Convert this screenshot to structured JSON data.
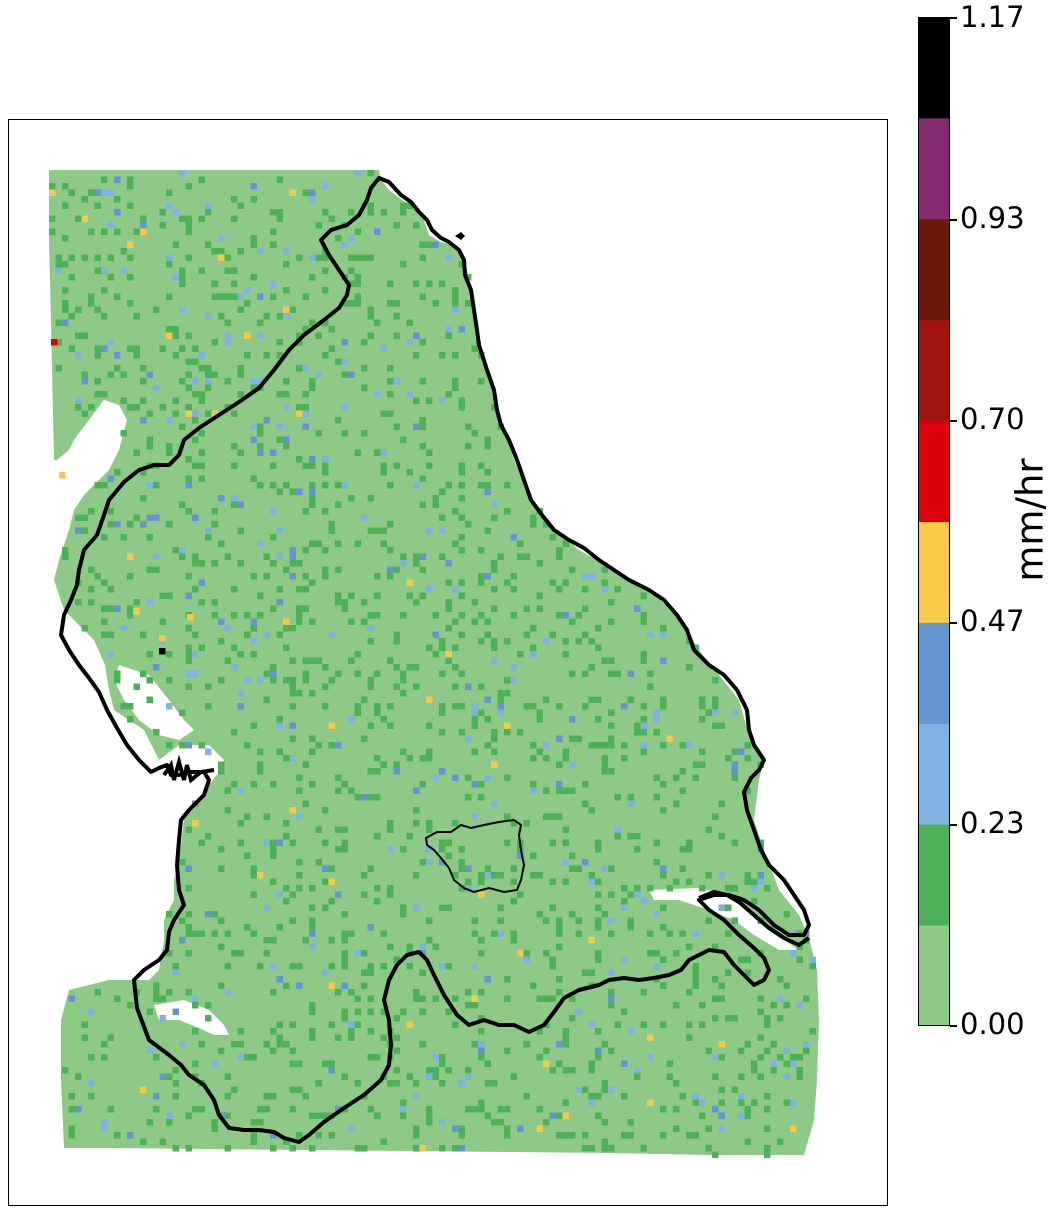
{
  "colorbar": {
    "label": "mm/hr",
    "ticks": [
      "0.00",
      "0.23",
      "0.47",
      "0.70",
      "0.93",
      "1.17"
    ],
    "range": [
      0.0,
      1.17
    ],
    "bins": [
      {
        "color": "#8fc987"
      },
      {
        "color": "#4db257"
      },
      {
        "color": "#7eb2df"
      },
      {
        "color": "#6396d0"
      },
      {
        "color": "#f6ca46"
      },
      {
        "color": "#df000b"
      },
      {
        "color": "#a3140e"
      },
      {
        "color": "#6d180d"
      },
      {
        "color": "#862b72"
      },
      {
        "color": "#000000"
      }
    ]
  },
  "map": {
    "background_field_color": "#8fc987",
    "region_outline_color": "#000000",
    "pixel_classes": [
      "light-green",
      "green",
      "light-blue",
      "blue",
      "yellow",
      "orange",
      "red",
      "black"
    ]
  }
}
